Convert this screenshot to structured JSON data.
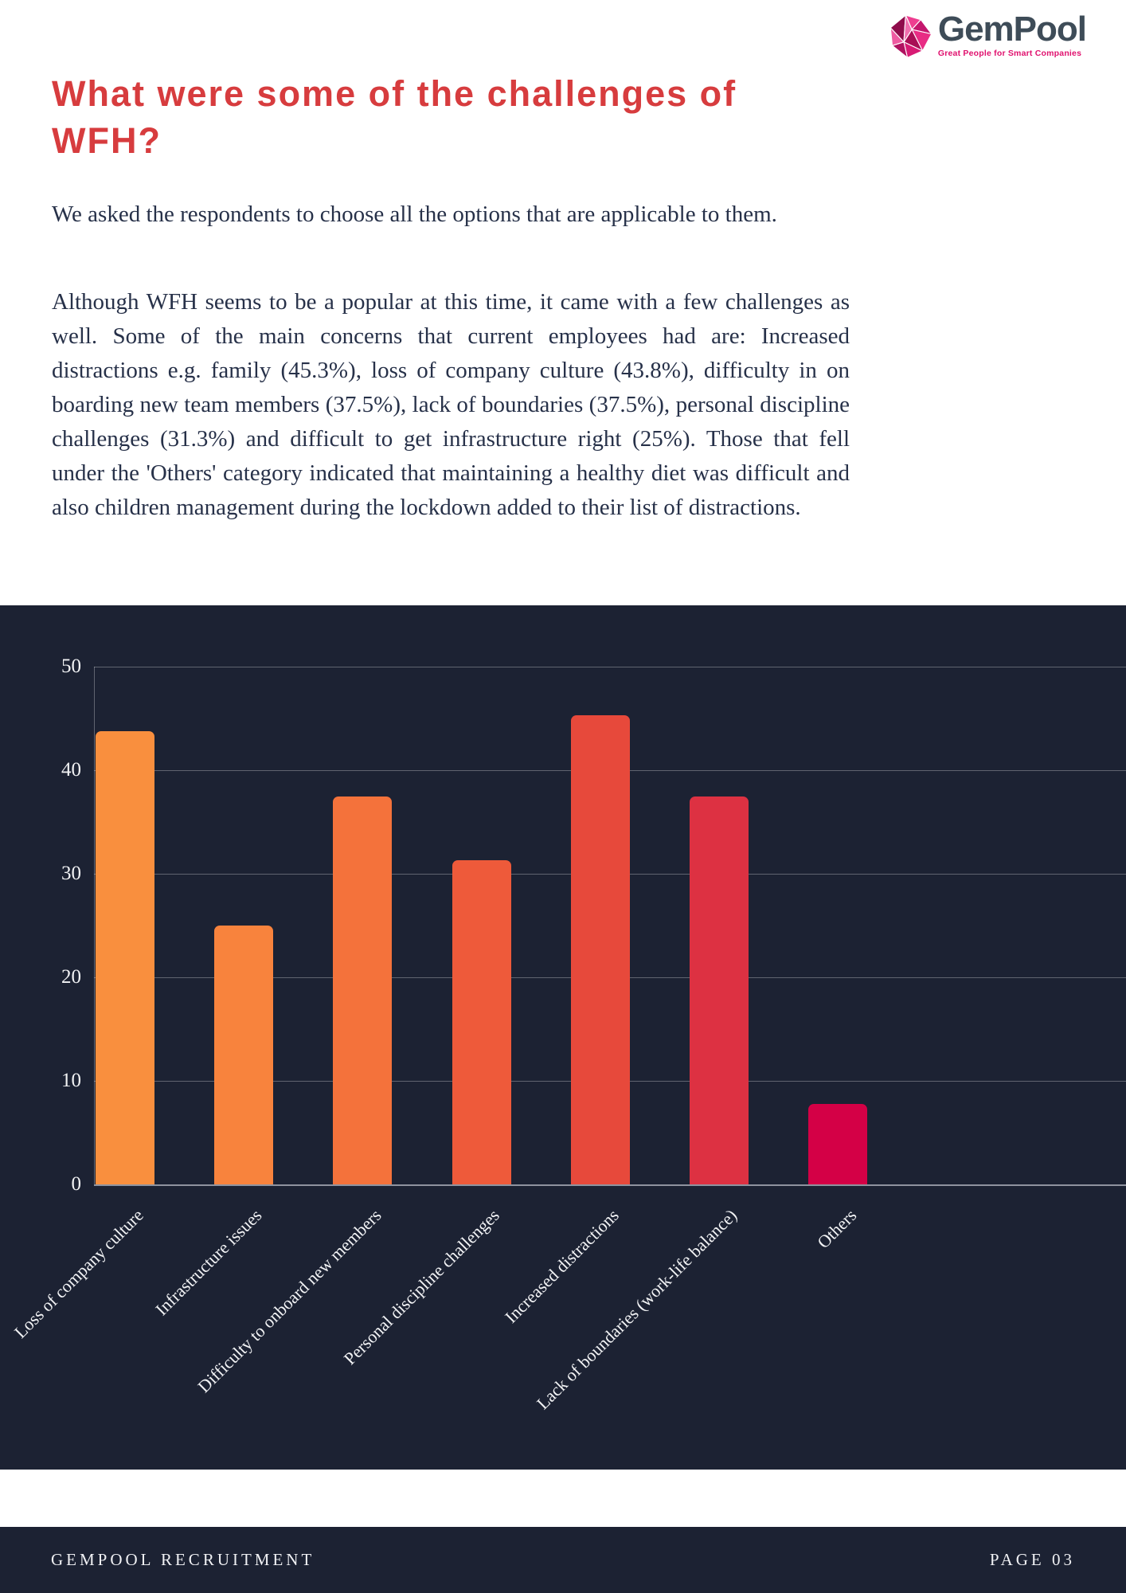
{
  "logo": {
    "name": "GemPool",
    "tagline": "Great People for Smart Companies",
    "name_color": "#3e4c58",
    "tagline_color": "#e0116e"
  },
  "header": {
    "title": "What were some of the challenges of WFH?",
    "title_color": "#d73c3e"
  },
  "paragraphs": {
    "intro": "We asked the respondents to choose all the options that are applicable to them.",
    "body": "Although WFH seems to be a popular at this time, it came with a few challenges as well. Some of the main concerns that current employees had are: Increased distractions e.g. family (45.3%), loss of company culture (43.8%), difficulty in on boarding new team members (37.5%), lack of boundaries (37.5%), personal discipline challenges (31.3%) and difficult to get infrastructure right (25%). Those that fell under the 'Others' category indicated that maintaining a healthy diet was difficult and also children management during the lockdown added to their list of distractions."
  },
  "chart_data": {
    "type": "bar",
    "title": "",
    "categories": [
      "Loss of company culture",
      "Infrastructure issues",
      "Difficulty to onboard new members",
      "Personal discipline challenges",
      "Increased distractions",
      "Lack of boundaries (work-life balance)",
      "Others"
    ],
    "values": [
      43.8,
      25,
      37.5,
      31.3,
      45.3,
      37.5,
      7.8
    ],
    "bar_colors": [
      "#f98f3e",
      "#f8833d",
      "#f4723b",
      "#ee5a3a",
      "#e7493b",
      "#dd3142",
      "#d40046"
    ],
    "xlabel": "",
    "ylabel": "",
    "yticks": [
      0,
      10,
      20,
      30,
      40,
      50
    ],
    "ylim": [
      0,
      52
    ],
    "grid": true,
    "legend_position": "none",
    "background": "#1c2233",
    "axis_text_color": "#f2f3f5"
  },
  "footer": {
    "left": "GEMPOOL RECRUITMENT",
    "right": "PAGE 03",
    "background": "#1c2233"
  }
}
